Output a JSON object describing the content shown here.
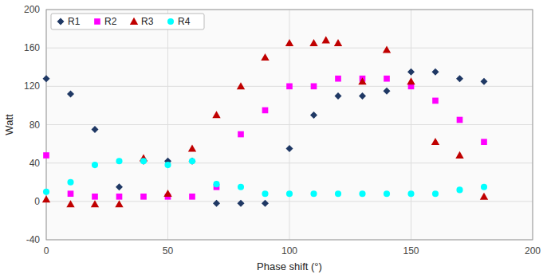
{
  "chart_data": {
    "type": "scatter",
    "xlabel": "Phase shift (°)",
    "ylabel": "Watt",
    "xlim": [
      0,
      200
    ],
    "ylim": [
      -40,
      200
    ],
    "xticks": [
      0,
      50,
      100,
      150,
      200
    ],
    "yticks": [
      -40,
      0,
      40,
      80,
      120,
      160,
      200
    ],
    "grid": true,
    "legend": "top-left",
    "series": [
      {
        "name": "R1",
        "color": "#1F3864",
        "marker": "diamond",
        "x": [
          0,
          10,
          20,
          30,
          40,
          50,
          60,
          70,
          80,
          90,
          100,
          110,
          120,
          130,
          140,
          150,
          160,
          170,
          180
        ],
        "values": [
          128,
          112,
          75,
          15,
          42,
          42,
          42,
          -2,
          -2,
          -2,
          55,
          90,
          110,
          110,
          115,
          135,
          135,
          128,
          125
        ]
      },
      {
        "name": "R2",
        "color": "#FF00FF",
        "marker": "square",
        "x": [
          0,
          10,
          20,
          30,
          40,
          50,
          60,
          70,
          80,
          90,
          100,
          110,
          120,
          130,
          140,
          150,
          160,
          170,
          180
        ],
        "values": [
          48,
          8,
          5,
          5,
          5,
          5,
          5,
          15,
          70,
          95,
          120,
          120,
          128,
          128,
          128,
          120,
          105,
          85,
          62
        ]
      },
      {
        "name": "R3",
        "color": "#C00000",
        "marker": "triangle",
        "x": [
          0,
          10,
          20,
          30,
          40,
          50,
          60,
          70,
          80,
          90,
          100,
          110,
          115,
          120,
          130,
          140,
          150,
          160,
          170,
          180
        ],
        "values": [
          2,
          -3,
          -3,
          -3,
          45,
          8,
          55,
          90,
          120,
          150,
          165,
          165,
          168,
          165,
          125,
          158,
          125,
          62,
          48,
          5
        ]
      },
      {
        "name": "R4",
        "color": "#00FFFF",
        "marker": "circle",
        "x": [
          0,
          10,
          20,
          30,
          40,
          50,
          60,
          70,
          80,
          90,
          100,
          110,
          120,
          130,
          140,
          150,
          160,
          170,
          180
        ],
        "values": [
          10,
          20,
          38,
          42,
          42,
          38,
          42,
          18,
          15,
          8,
          8,
          8,
          8,
          8,
          8,
          8,
          8,
          12,
          15
        ]
      }
    ]
  }
}
